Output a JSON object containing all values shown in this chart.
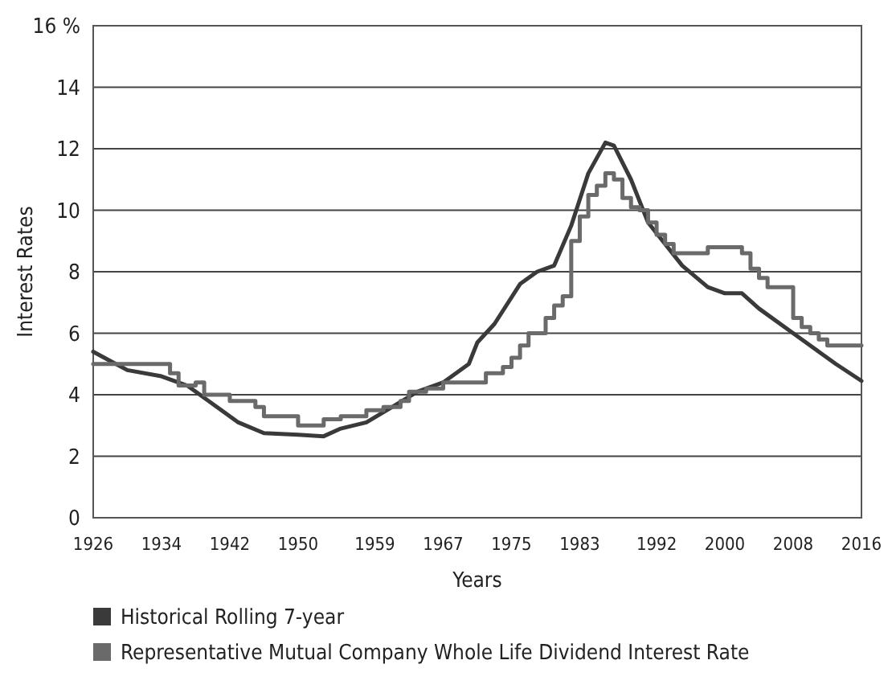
{
  "chart_data": {
    "type": "line",
    "xlabel": "Years",
    "ylabel": "Interest Rates",
    "xlim": [
      1926,
      2016
    ],
    "xticks": [
      1926,
      1934,
      1942,
      1950,
      1959,
      1967,
      1975,
      1983,
      1992,
      2000,
      2008,
      2016
    ],
    "ylim": [
      0,
      16
    ],
    "yticks": [
      0,
      2,
      4,
      6,
      8,
      10,
      12,
      14,
      {
        "value": 16,
        "label": "16 %"
      }
    ],
    "grid": "y",
    "legend": "bottom",
    "marker": "none",
    "line_style": "solid",
    "series": [
      {
        "name": "Historical Rolling 7-year",
        "color": "#3a3a3a",
        "x": [
          1926,
          1928,
          1930,
          1934,
          1937,
          1940,
          1943,
          1946,
          1950,
          1953,
          1955,
          1958,
          1961,
          1964,
          1967,
          1970,
          1971,
          1973,
          1976,
          1978,
          1980,
          1982,
          1984,
          1986,
          1987,
          1989,
          1991,
          1995,
          1998,
          2000,
          2002,
          2004,
          2008,
          2011,
          2013,
          2016
        ],
        "values": [
          5.4,
          5.1,
          4.8,
          4.6,
          4.3,
          3.7,
          3.1,
          2.75,
          2.7,
          2.65,
          2.9,
          3.1,
          3.6,
          4.1,
          4.4,
          5.0,
          5.7,
          6.3,
          7.6,
          8.0,
          8.2,
          9.5,
          11.2,
          12.2,
          12.1,
          11.0,
          9.6,
          8.2,
          7.5,
          7.3,
          7.3,
          6.8,
          6.0,
          5.4,
          5.0,
          4.45
        ]
      },
      {
        "name": "Representative Mutual Company Whole Life Dividend Interest Rate",
        "type": "step",
        "color": "#6a6a6a",
        "x": [
          1926,
          1935,
          1936,
          1938,
          1939,
          1942,
          1945,
          1946,
          1950,
          1953,
          1955,
          1958,
          1960,
          1962,
          1963,
          1965,
          1967,
          1972,
          1974,
          1975,
          1976,
          1977,
          1979,
          1980,
          1981,
          1982,
          1983,
          1984,
          1985,
          1986,
          1987,
          1988,
          1989,
          1990,
          1991,
          1992,
          1993,
          1994,
          1998,
          2002,
          2003,
          2004,
          2005,
          2008,
          2009,
          2010,
          2011,
          2012,
          2016
        ],
        "values": [
          5.0,
          4.7,
          4.3,
          4.4,
          4.0,
          3.8,
          3.6,
          3.3,
          3.0,
          3.2,
          3.3,
          3.5,
          3.6,
          3.8,
          4.1,
          4.2,
          4.4,
          4.7,
          4.9,
          5.2,
          5.6,
          6.0,
          6.5,
          6.9,
          7.2,
          9.0,
          9.8,
          10.5,
          10.8,
          11.2,
          11.0,
          10.4,
          10.1,
          10.0,
          9.6,
          9.2,
          8.9,
          8.6,
          8.8,
          8.6,
          8.1,
          7.8,
          7.5,
          6.5,
          6.2,
          6.0,
          5.8,
          5.6,
          5.6
        ]
      }
    ]
  }
}
